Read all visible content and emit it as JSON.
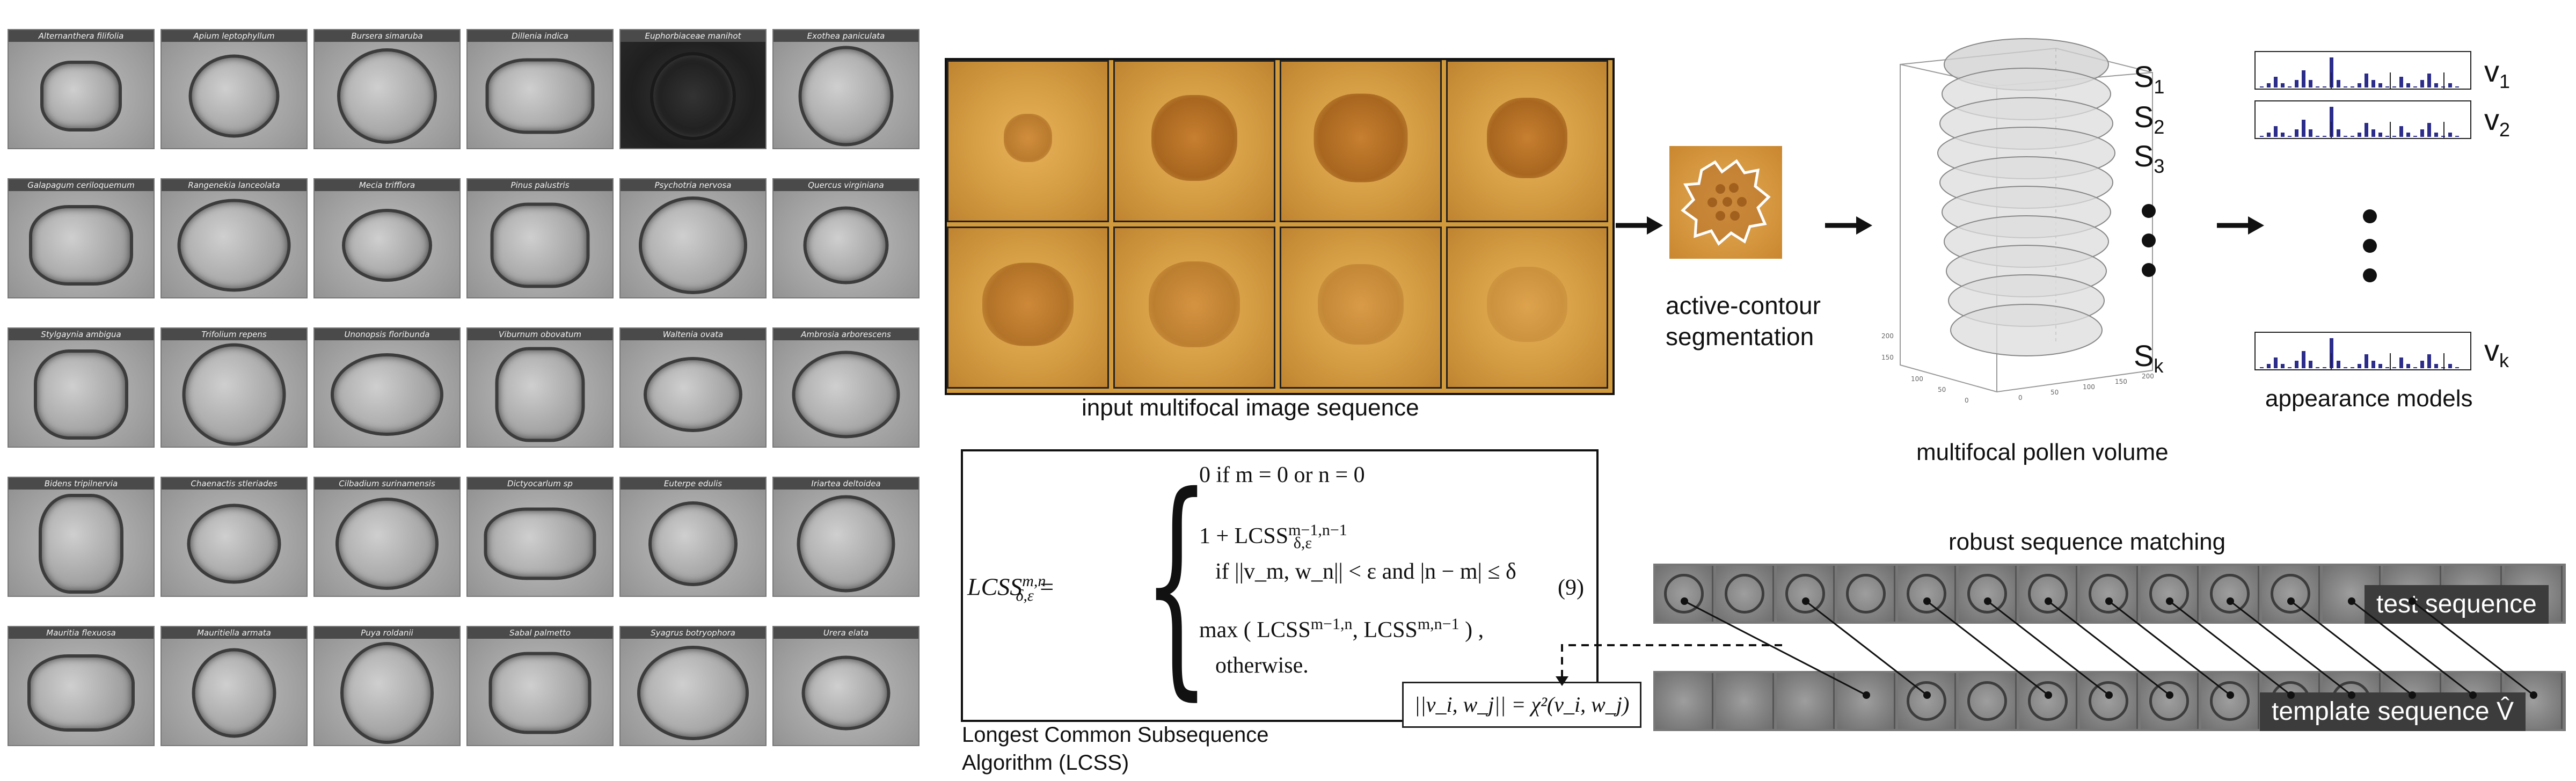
{
  "pollen_grid": {
    "species": [
      [
        "Alternanthera filifolia",
        "Apium leptophyllum",
        "Bursera simaruba",
        "Dillenia indica",
        "Euphorbiaceae manihot",
        "Exothea paniculata"
      ],
      [
        "Galapagum ceriloquemum",
        "Rangenekia lanceolata",
        "Mecia trifflora",
        "Pinus palustris",
        "Psychotria nervosa",
        "Quercus virginiana"
      ],
      [
        "Stylgaynia ambigua",
        "Trifolium repens",
        "Unonopsis floribunda",
        "Viburnum obovatum",
        "Waltenia ovata",
        "Ambrosia arborescens"
      ],
      [
        "Bidens tripilnervia",
        "Chaenactis stleriades",
        "Cilbadium surinamensis",
        "Dictyocarlum sp",
        "Euterpe edulis",
        "Iriartea deltoidea"
      ],
      [
        "Mauritia flexuosa",
        "Mauritiella armata",
        "Puya roldanii",
        "Sabal palmetto",
        "Syagrus botryophora",
        "Urera elata"
      ]
    ]
  },
  "captions": {
    "multifocal": "input multifocal image sequence",
    "active_contour": [
      "active-contour",
      "segmentation"
    ],
    "volume": "multifocal pollen volume",
    "appearance": "appearance models",
    "robust": "robust sequence matching",
    "lcss": [
      "Longest Common Subsequence",
      "Algorithm (LCSS)"
    ]
  },
  "slices": {
    "s1": "S",
    "s1_sub": "1",
    "s2": "S",
    "s2_sub": "2",
    "s3": "S",
    "s3_sub": "3",
    "sk": "S",
    "sk_sub": "k"
  },
  "vectors": {
    "v1": "v",
    "v1_sub": "1",
    "v2": "v",
    "v2_sub": "2",
    "vk": "v",
    "vk_sub": "k"
  },
  "equation": {
    "lhs": "LCSS",
    "lhs_sup": "m,n",
    "lhs_sub": "δ,ε",
    "eq": "=",
    "case1": "0   if  m = 0  or  n = 0",
    "case2a": "1 + LCSS",
    "case2a_sup": "m−1,n−1",
    "case2a_sub": "δ,ε",
    "case2b": "if  ||v_m, w_n|| < ε  and  |n − m| ≤ δ",
    "case3a": "max ( LCSS",
    "case3a_sup": "m−1,n",
    "case3a_mid": ", LCSS",
    "case3a_sup2": "m,n−1",
    "case3a_end": " ) ,",
    "case3b": "otherwise.",
    "number": "(9)",
    "distance": "||v_i, w_j|| = χ²(v_i, w_j)"
  },
  "sequences": {
    "test_label": "test sequence",
    "template_label": "template sequence V̂"
  },
  "volume_axes": {
    "ticks": [
      "200",
      "150",
      "100",
      "50",
      "0"
    ]
  }
}
